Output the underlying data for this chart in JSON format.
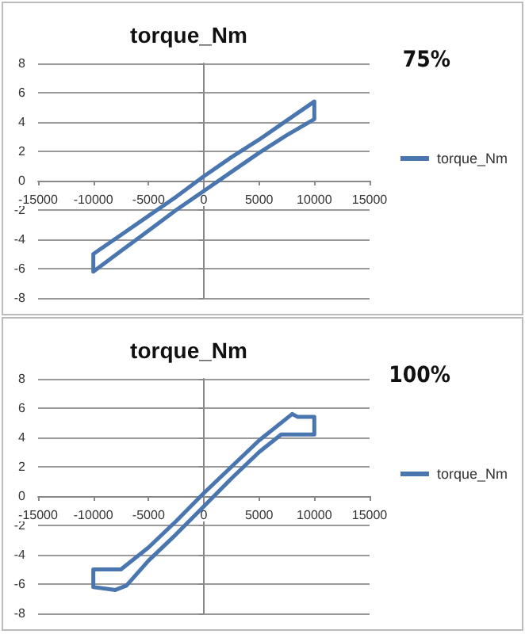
{
  "chart_data": [
    {
      "type": "line",
      "title": "torque_Nm",
      "annotations": [
        "75%"
      ],
      "xlim": [
        -15000,
        15000
      ],
      "ylim": [
        -8,
        8
      ],
      "xticks": [
        -15000,
        -10000,
        -5000,
        0,
        5000,
        10000,
        15000
      ],
      "yticks": [
        -8,
        -6,
        -4,
        -2,
        0,
        2,
        4,
        6,
        8
      ],
      "grid": "y",
      "legend": "right",
      "marker": "none",
      "line_style": "solid",
      "series": [
        {
          "name": "torque_Nm",
          "color": "#4a76b0",
          "x": [
            -10000,
            -10000,
            -7500,
            -5000,
            -2500,
            0,
            2500,
            5000,
            7500,
            10000,
            10000,
            7500,
            5000,
            2500,
            0,
            -2500,
            -5000,
            -7500,
            -10000,
            -10000
          ],
          "values": [
            -5.0,
            -6.2,
            -4.8,
            -3.4,
            -2.0,
            -0.7,
            0.6,
            1.9,
            3.1,
            4.2,
            5.4,
            4.1,
            2.8,
            1.6,
            0.3,
            -1.1,
            -2.4,
            -3.7,
            -5.0,
            -6.2
          ]
        }
      ]
    },
    {
      "type": "line",
      "title": "torque_Nm",
      "annotations": [
        "100%"
      ],
      "xlim": [
        -15000,
        15000
      ],
      "ylim": [
        -8,
        8
      ],
      "xticks": [
        -15000,
        -10000,
        -5000,
        0,
        5000,
        10000,
        15000
      ],
      "yticks": [
        -8,
        -6,
        -4,
        -2,
        0,
        2,
        4,
        6,
        8
      ],
      "grid": "y",
      "legend": "right",
      "marker": "none",
      "line_style": "solid",
      "series": [
        {
          "name": "torque_Nm",
          "color": "#4a76b0",
          "x": [
            -10000,
            -10000,
            -8000,
            -7000,
            -5000,
            -2500,
            0,
            2500,
            5000,
            7000,
            8500,
            10000,
            10000,
            8500,
            8000,
            5000,
            2500,
            0,
            -2500,
            -5000,
            -7500,
            -10000,
            -10000
          ],
          "values": [
            -5.0,
            -6.2,
            -6.4,
            -6.1,
            -4.4,
            -2.6,
            -0.7,
            1.2,
            3.0,
            4.2,
            4.2,
            4.2,
            5.4,
            5.4,
            5.6,
            3.8,
            2.0,
            0.2,
            -1.7,
            -3.5,
            -5.0,
            -5.0,
            -6.2
          ]
        }
      ]
    }
  ]
}
